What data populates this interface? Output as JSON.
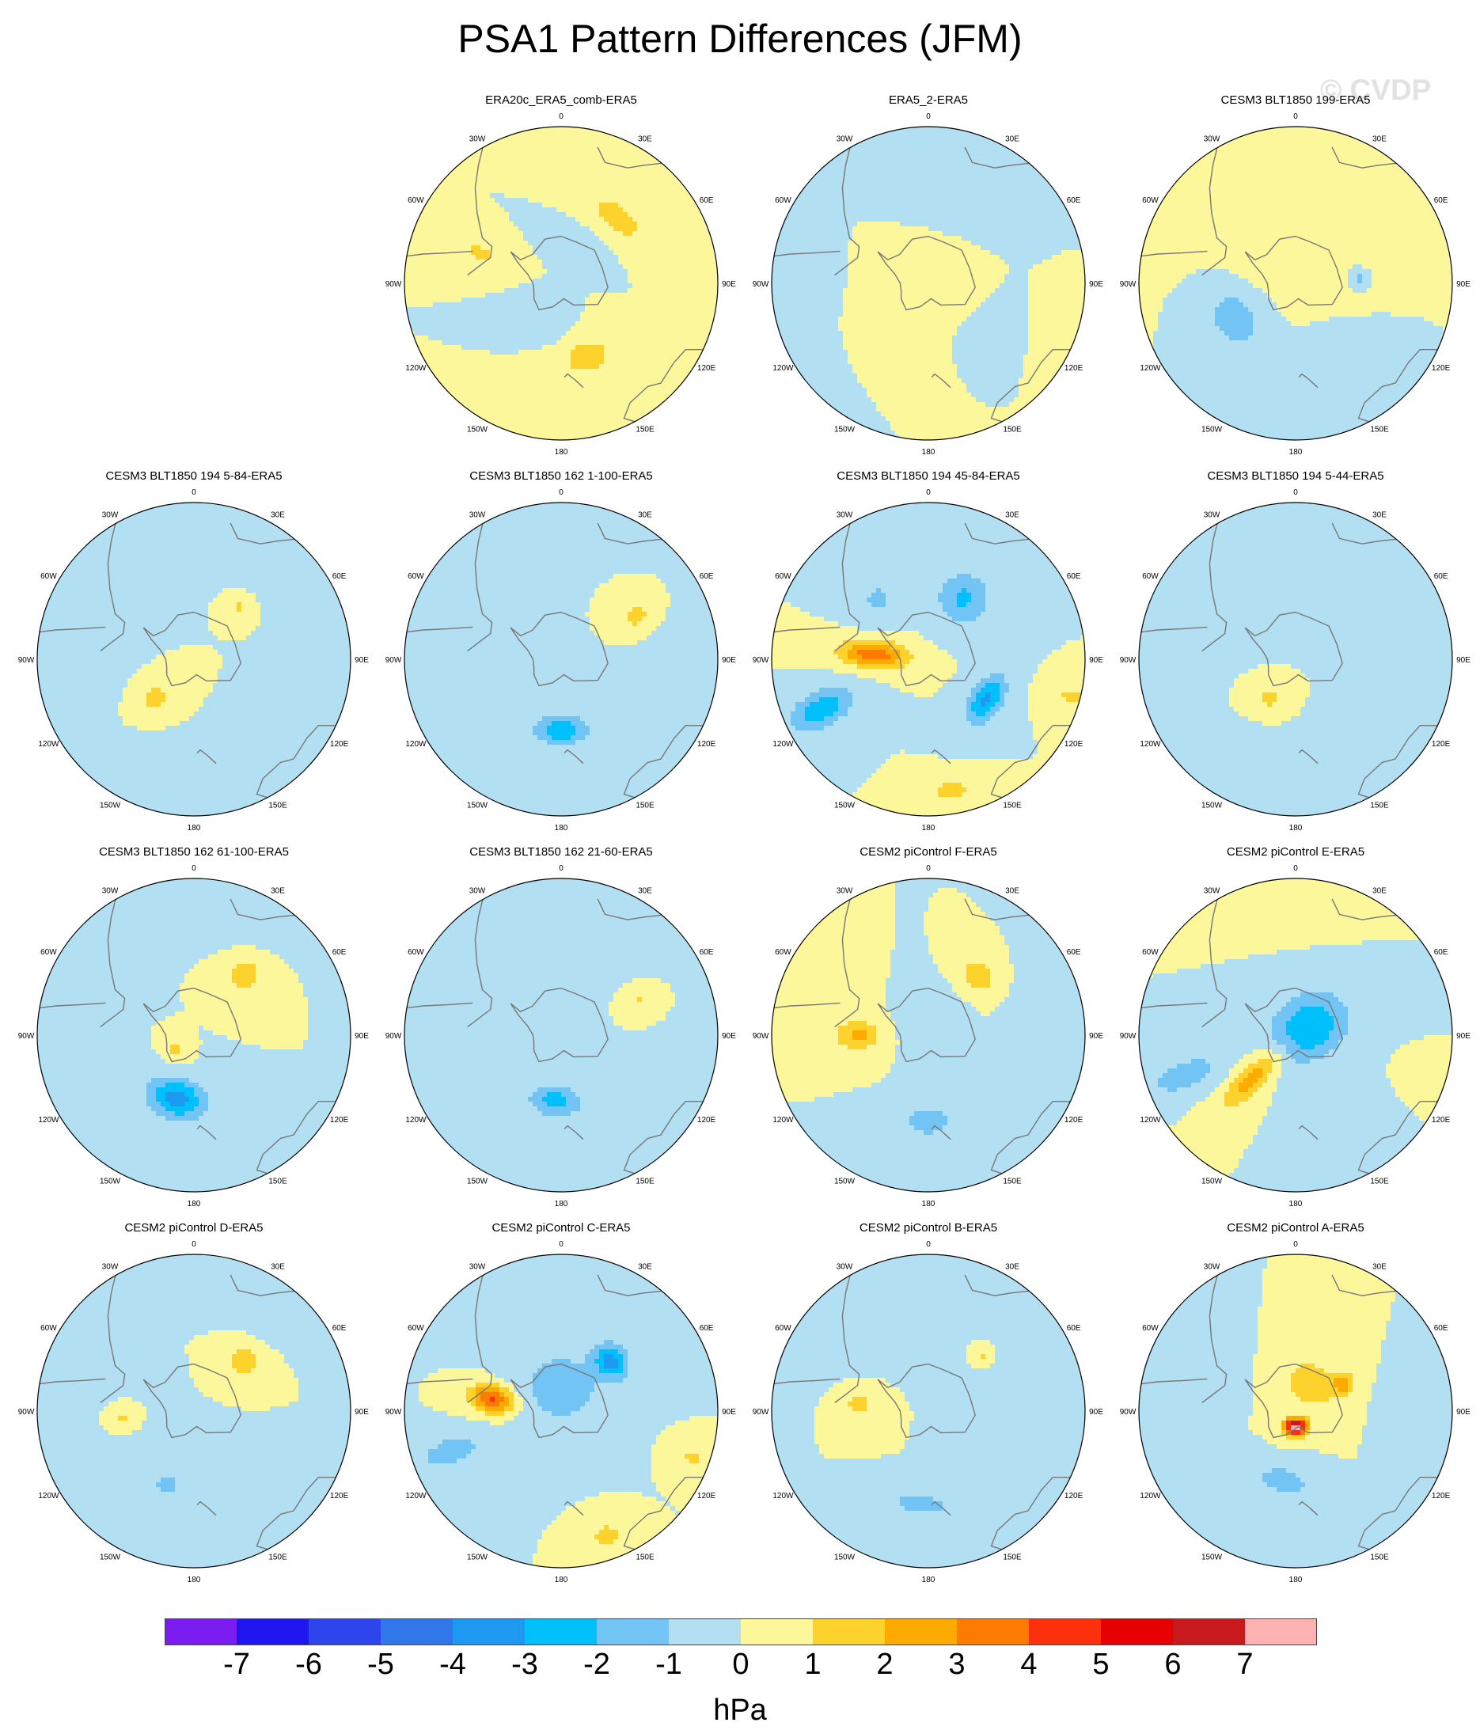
{
  "title": "PSA1 Pattern Differences (JFM)",
  "watermark": "© CVDP",
  "units": "hPa",
  "colors": {
    "levels": [
      "#7b1df0",
      "#1f16f0",
      "#2e44ec",
      "#3277ea",
      "#1e99f2",
      "#00c0fb",
      "#72c4f4",
      "#b3dff3",
      "#fdf79c",
      "#fed22d",
      "#fdab00",
      "#fc7b00",
      "#fc300c",
      "#e60000",
      "#c81a1c",
      "#feb2b2"
    ],
    "land_outline": "#777777"
  },
  "chart_data": {
    "type": "contour-map",
    "projection": "south-polar-stereographic",
    "variable": "PSA1 pattern difference (sea level pressure)",
    "colorbar": {
      "ticks": [
        "-7",
        "-6",
        "-5",
        "-4",
        "-3",
        "-2",
        "-1",
        "0",
        "1",
        "2",
        "3",
        "4",
        "5",
        "6",
        "7"
      ],
      "units": "hPa"
    },
    "lon_labels": [
      "0",
      "30E",
      "60E",
      "90E",
      "120E",
      "150E",
      "180",
      "150W",
      "120W",
      "90W",
      "60W",
      "30W"
    ],
    "panels": [
      {
        "title": "ERA20c_ERA5_comb-ERA5",
        "features": [
          {
            "lon": 40,
            "r": 0.55,
            "sx": 0.14,
            "sy": 0.07,
            "v": 1.7
          },
          {
            "lon": 160,
            "r": 0.5,
            "sx": 0.12,
            "sy": 0.09,
            "v": 1.6
          },
          {
            "lon": 290,
            "r": 0.55,
            "sx": 0.05,
            "sy": 0.1,
            "v": 1.3
          },
          {
            "lon": 30,
            "r": 0.26,
            "sx": 0.09,
            "sy": 0.06,
            "v": -0.7
          },
          {
            "lon": 200,
            "r": 0.26,
            "sx": 0.09,
            "sy": 0.07,
            "v": -0.7
          }
        ]
      },
      {
        "title": "ERA5_2-ERA5",
        "features": [
          {
            "lon": 0,
            "r": 0.0,
            "sx": 0.22,
            "sy": 0.18,
            "v": 0.6
          },
          {
            "lon": 210,
            "r": 0.5,
            "sx": 0.3,
            "sy": 0.16,
            "v": 0.5
          },
          {
            "lon": 110,
            "r": 0.85,
            "sx": 0.2,
            "sy": 0.15,
            "v": 0.4
          },
          {
            "lon": 20,
            "r": 0.7,
            "sx": 0.3,
            "sy": 0.2,
            "v": -0.6
          },
          {
            "lon": 250,
            "r": 0.85,
            "sx": 0.35,
            "sy": 0.2,
            "v": -0.5
          },
          {
            "lon": 130,
            "r": 0.55,
            "sx": 0.2,
            "sy": 0.15,
            "v": -0.5
          }
        ]
      },
      {
        "title": "CESM3 BLT1850 199-ERA5",
        "features": [
          {
            "lon": 240,
            "r": 0.45,
            "sx": 0.15,
            "sy": 0.12,
            "v": -1.6
          },
          {
            "lon": 85,
            "r": 0.4,
            "sx": 0.04,
            "sy": 0.04,
            "v": -1.4
          },
          {
            "lon": 0,
            "r": 0.2,
            "sx": 0.3,
            "sy": 0.2,
            "v": 0.6
          },
          {
            "lon": 30,
            "r": 0.85,
            "sx": 0.25,
            "sy": 0.15,
            "v": 0.6
          },
          {
            "lon": 160,
            "r": 0.55,
            "sx": 0.2,
            "sy": 0.12,
            "v": -0.6
          }
        ]
      },
      {
        "title": "CESM3 BLT1850 194 5-84-ERA5",
        "features": [
          {
            "lon": 225,
            "r": 0.35,
            "sx": 0.07,
            "sy": 0.07,
            "v": 1.5
          },
          {
            "lon": 40,
            "r": 0.45,
            "sx": 0.04,
            "sy": 0.04,
            "v": 1.3
          },
          {
            "lon": 180,
            "r": 0.7,
            "sx": 0.25,
            "sy": 0.1,
            "v": -0.7
          },
          {
            "lon": 30,
            "r": 0.8,
            "sx": 0.2,
            "sy": 0.1,
            "v": -0.6
          },
          {
            "lon": 290,
            "r": 0.5,
            "sx": 0.2,
            "sy": 0.08,
            "v": -0.5
          }
        ]
      },
      {
        "title": "CESM3 BLT1850 162 1-100-ERA5",
        "features": [
          {
            "lon": 180,
            "r": 0.45,
            "sx": 0.12,
            "sy": 0.07,
            "v": -2.8
          },
          {
            "lon": 60,
            "r": 0.55,
            "sx": 0.05,
            "sy": 0.06,
            "v": 1.6
          },
          {
            "lon": 270,
            "r": 0.5,
            "sx": 0.25,
            "sy": 0.12,
            "v": -0.6
          },
          {
            "lon": 100,
            "r": 0.85,
            "sx": 0.15,
            "sy": 0.15,
            "v": -0.6
          }
        ]
      },
      {
        "title": "CESM3 BLT1850 194 45-84-ERA5",
        "features": [
          {
            "lon": 275,
            "r": 0.35,
            "sx": 0.06,
            "sy": 0.15,
            "v": 3.8
          },
          {
            "lon": 245,
            "r": 0.75,
            "sx": 0.08,
            "sy": 0.15,
            "v": -2.8
          },
          {
            "lon": 125,
            "r": 0.45,
            "sx": 0.12,
            "sy": 0.07,
            "v": -3.2
          },
          {
            "lon": 30,
            "r": 0.45,
            "sx": 0.12,
            "sy": 0.12,
            "v": -2.2
          },
          {
            "lon": 170,
            "r": 0.85,
            "sx": 0.09,
            "sy": 0.06,
            "v": 1.5
          },
          {
            "lon": 105,
            "r": 0.95,
            "sx": 0.06,
            "sy": 0.1,
            "v": 1.2
          },
          {
            "lon": 320,
            "r": 0.5,
            "sx": 0.1,
            "sy": 0.1,
            "v": -1.2
          }
        ]
      },
      {
        "title": "CESM3 BLT1850 194 5-44-ERA5",
        "features": [
          {
            "lon": 215,
            "r": 0.3,
            "sx": 0.06,
            "sy": 0.05,
            "v": 1.4
          },
          {
            "lon": 180,
            "r": 0.75,
            "sx": 0.2,
            "sy": 0.12,
            "v": -0.6
          },
          {
            "lon": 60,
            "r": 0.75,
            "sx": 0.1,
            "sy": 0.15,
            "v": -0.5
          },
          {
            "lon": 290,
            "r": 0.7,
            "sx": 0.1,
            "sy": 0.15,
            "v": -0.5
          }
        ]
      },
      {
        "title": "CESM3 BLT1850 162 61-100-ERA5",
        "features": [
          {
            "lon": 195,
            "r": 0.42,
            "sx": 0.13,
            "sy": 0.09,
            "v": -3.5
          },
          {
            "lon": 40,
            "r": 0.5,
            "sx": 0.08,
            "sy": 0.08,
            "v": 1.7
          },
          {
            "lon": 230,
            "r": 0.15,
            "sx": 0.05,
            "sy": 0.04,
            "v": 1.4
          },
          {
            "lon": 290,
            "r": 0.65,
            "sx": 0.15,
            "sy": 0.1,
            "v": -0.6
          },
          {
            "lon": 20,
            "r": 0.85,
            "sx": 0.15,
            "sy": 0.12,
            "v": -0.6
          }
        ]
      },
      {
        "title": "CESM3 BLT1850 162 21-60-ERA5",
        "features": [
          {
            "lon": 185,
            "r": 0.42,
            "sx": 0.12,
            "sy": 0.07,
            "v": -2.5
          },
          {
            "lon": 65,
            "r": 0.55,
            "sx": 0.03,
            "sy": 0.04,
            "v": 1.3
          },
          {
            "lon": 300,
            "r": 0.75,
            "sx": 0.15,
            "sy": 0.12,
            "v": -0.5
          },
          {
            "lon": 20,
            "r": 0.8,
            "sx": 0.12,
            "sy": 0.12,
            "v": -0.5
          }
        ]
      },
      {
        "title": "CESM2 piControl F-ERA5",
        "features": [
          {
            "lon": 270,
            "r": 0.45,
            "sx": 0.07,
            "sy": 0.1,
            "v": 2.3
          },
          {
            "lon": 40,
            "r": 0.5,
            "sx": 0.09,
            "sy": 0.07,
            "v": 1.8
          },
          {
            "lon": 180,
            "r": 0.55,
            "sx": 0.12,
            "sy": 0.07,
            "v": -1.7
          },
          {
            "lon": 80,
            "r": 0.75,
            "sx": 0.15,
            "sy": 0.12,
            "v": -0.7
          },
          {
            "lon": 0,
            "r": 0.1,
            "sx": 0.12,
            "sy": 0.12,
            "v": -0.6
          },
          {
            "lon": 300,
            "r": 0.85,
            "sx": 0.1,
            "sy": 0.2,
            "v": 0.4
          }
        ]
      },
      {
        "title": "CESM2 piControl E-ERA5",
        "features": [
          {
            "lon": 60,
            "r": 0.1,
            "sx": 0.14,
            "sy": 0.18,
            "v": -3.0
          },
          {
            "lon": 225,
            "r": 0.4,
            "sx": 0.06,
            "sy": 0.17,
            "v": 2.5
          },
          {
            "lon": 250,
            "r": 0.75,
            "sx": 0.07,
            "sy": 0.16,
            "v": -1.8
          },
          {
            "lon": 105,
            "r": 0.95,
            "sx": 0.05,
            "sy": 0.1,
            "v": 1.0
          },
          {
            "lon": 0,
            "r": 0.85,
            "sx": 0.2,
            "sy": 0.1,
            "v": 0.6
          }
        ]
      },
      {
        "title": "CESM2 piControl D-ERA5",
        "features": [
          {
            "lon": 45,
            "r": 0.45,
            "sx": 0.08,
            "sy": 0.07,
            "v": 1.7
          },
          {
            "lon": 200,
            "r": 0.5,
            "sx": 0.05,
            "sy": 0.04,
            "v": -1.6
          },
          {
            "lon": 265,
            "r": 0.45,
            "sx": 0.04,
            "sy": 0.04,
            "v": 1.2
          },
          {
            "lon": 180,
            "r": 0.35,
            "sx": 0.25,
            "sy": 0.1,
            "v": -0.6
          },
          {
            "lon": 30,
            "r": 0.8,
            "sx": 0.15,
            "sy": 0.1,
            "v": -0.6
          },
          {
            "lon": 300,
            "r": 0.75,
            "sx": 0.1,
            "sy": 0.15,
            "v": -0.5
          }
        ]
      },
      {
        "title": "CESM2 piControl C-ERA5",
        "features": [
          {
            "lon": 280,
            "r": 0.45,
            "sx": 0.06,
            "sy": 0.1,
            "v": 4.2
          },
          {
            "lon": 45,
            "r": 0.45,
            "sx": 0.08,
            "sy": 0.07,
            "v": -3.3
          },
          {
            "lon": 0,
            "r": 0.15,
            "sx": 0.2,
            "sy": 0.18,
            "v": -1.6
          },
          {
            "lon": 250,
            "r": 0.75,
            "sx": 0.07,
            "sy": 0.15,
            "v": -1.7
          },
          {
            "lon": 160,
            "r": 0.85,
            "sx": 0.08,
            "sy": 0.07,
            "v": 1.4
          },
          {
            "lon": 110,
            "r": 0.9,
            "sx": 0.06,
            "sy": 0.08,
            "v": 1.2
          }
        ]
      },
      {
        "title": "CESM2 piControl B-ERA5",
        "features": [
          {
            "lon": 275,
            "r": 0.45,
            "sx": 0.06,
            "sy": 0.06,
            "v": 1.5
          },
          {
            "lon": 15,
            "r": 0.3,
            "sx": 0.05,
            "sy": 0.04,
            "v": -0.7
          },
          {
            "lon": 45,
            "r": 0.5,
            "sx": 0.03,
            "sy": 0.03,
            "v": 1.3
          },
          {
            "lon": 185,
            "r": 0.6,
            "sx": 0.15,
            "sy": 0.05,
            "v": -1.6
          },
          {
            "lon": 80,
            "r": 0.75,
            "sx": 0.15,
            "sy": 0.15,
            "v": -0.6
          },
          {
            "lon": 320,
            "r": 0.75,
            "sx": 0.15,
            "sy": 0.12,
            "v": -0.6
          }
        ]
      },
      {
        "title": "CESM2 piControl A-ERA5",
        "features": [
          {
            "lon": 30,
            "r": 0.2,
            "sx": 0.12,
            "sy": 0.1,
            "v": 2.0
          },
          {
            "lon": 60,
            "r": 0.35,
            "sx": 0.05,
            "sy": 0.05,
            "v": 2.4
          },
          {
            "lon": 180,
            "r": 0.1,
            "sx": 0.05,
            "sy": 0.04,
            "v": 7.5
          },
          {
            "lon": 190,
            "r": 0.45,
            "sx": 0.12,
            "sy": 0.06,
            "v": -1.8
          },
          {
            "lon": 300,
            "r": 0.75,
            "sx": 0.1,
            "sy": 0.15,
            "v": -0.5
          },
          {
            "lon": 90,
            "r": 0.8,
            "sx": 0.1,
            "sy": 0.12,
            "v": -0.5
          }
        ]
      }
    ]
  }
}
